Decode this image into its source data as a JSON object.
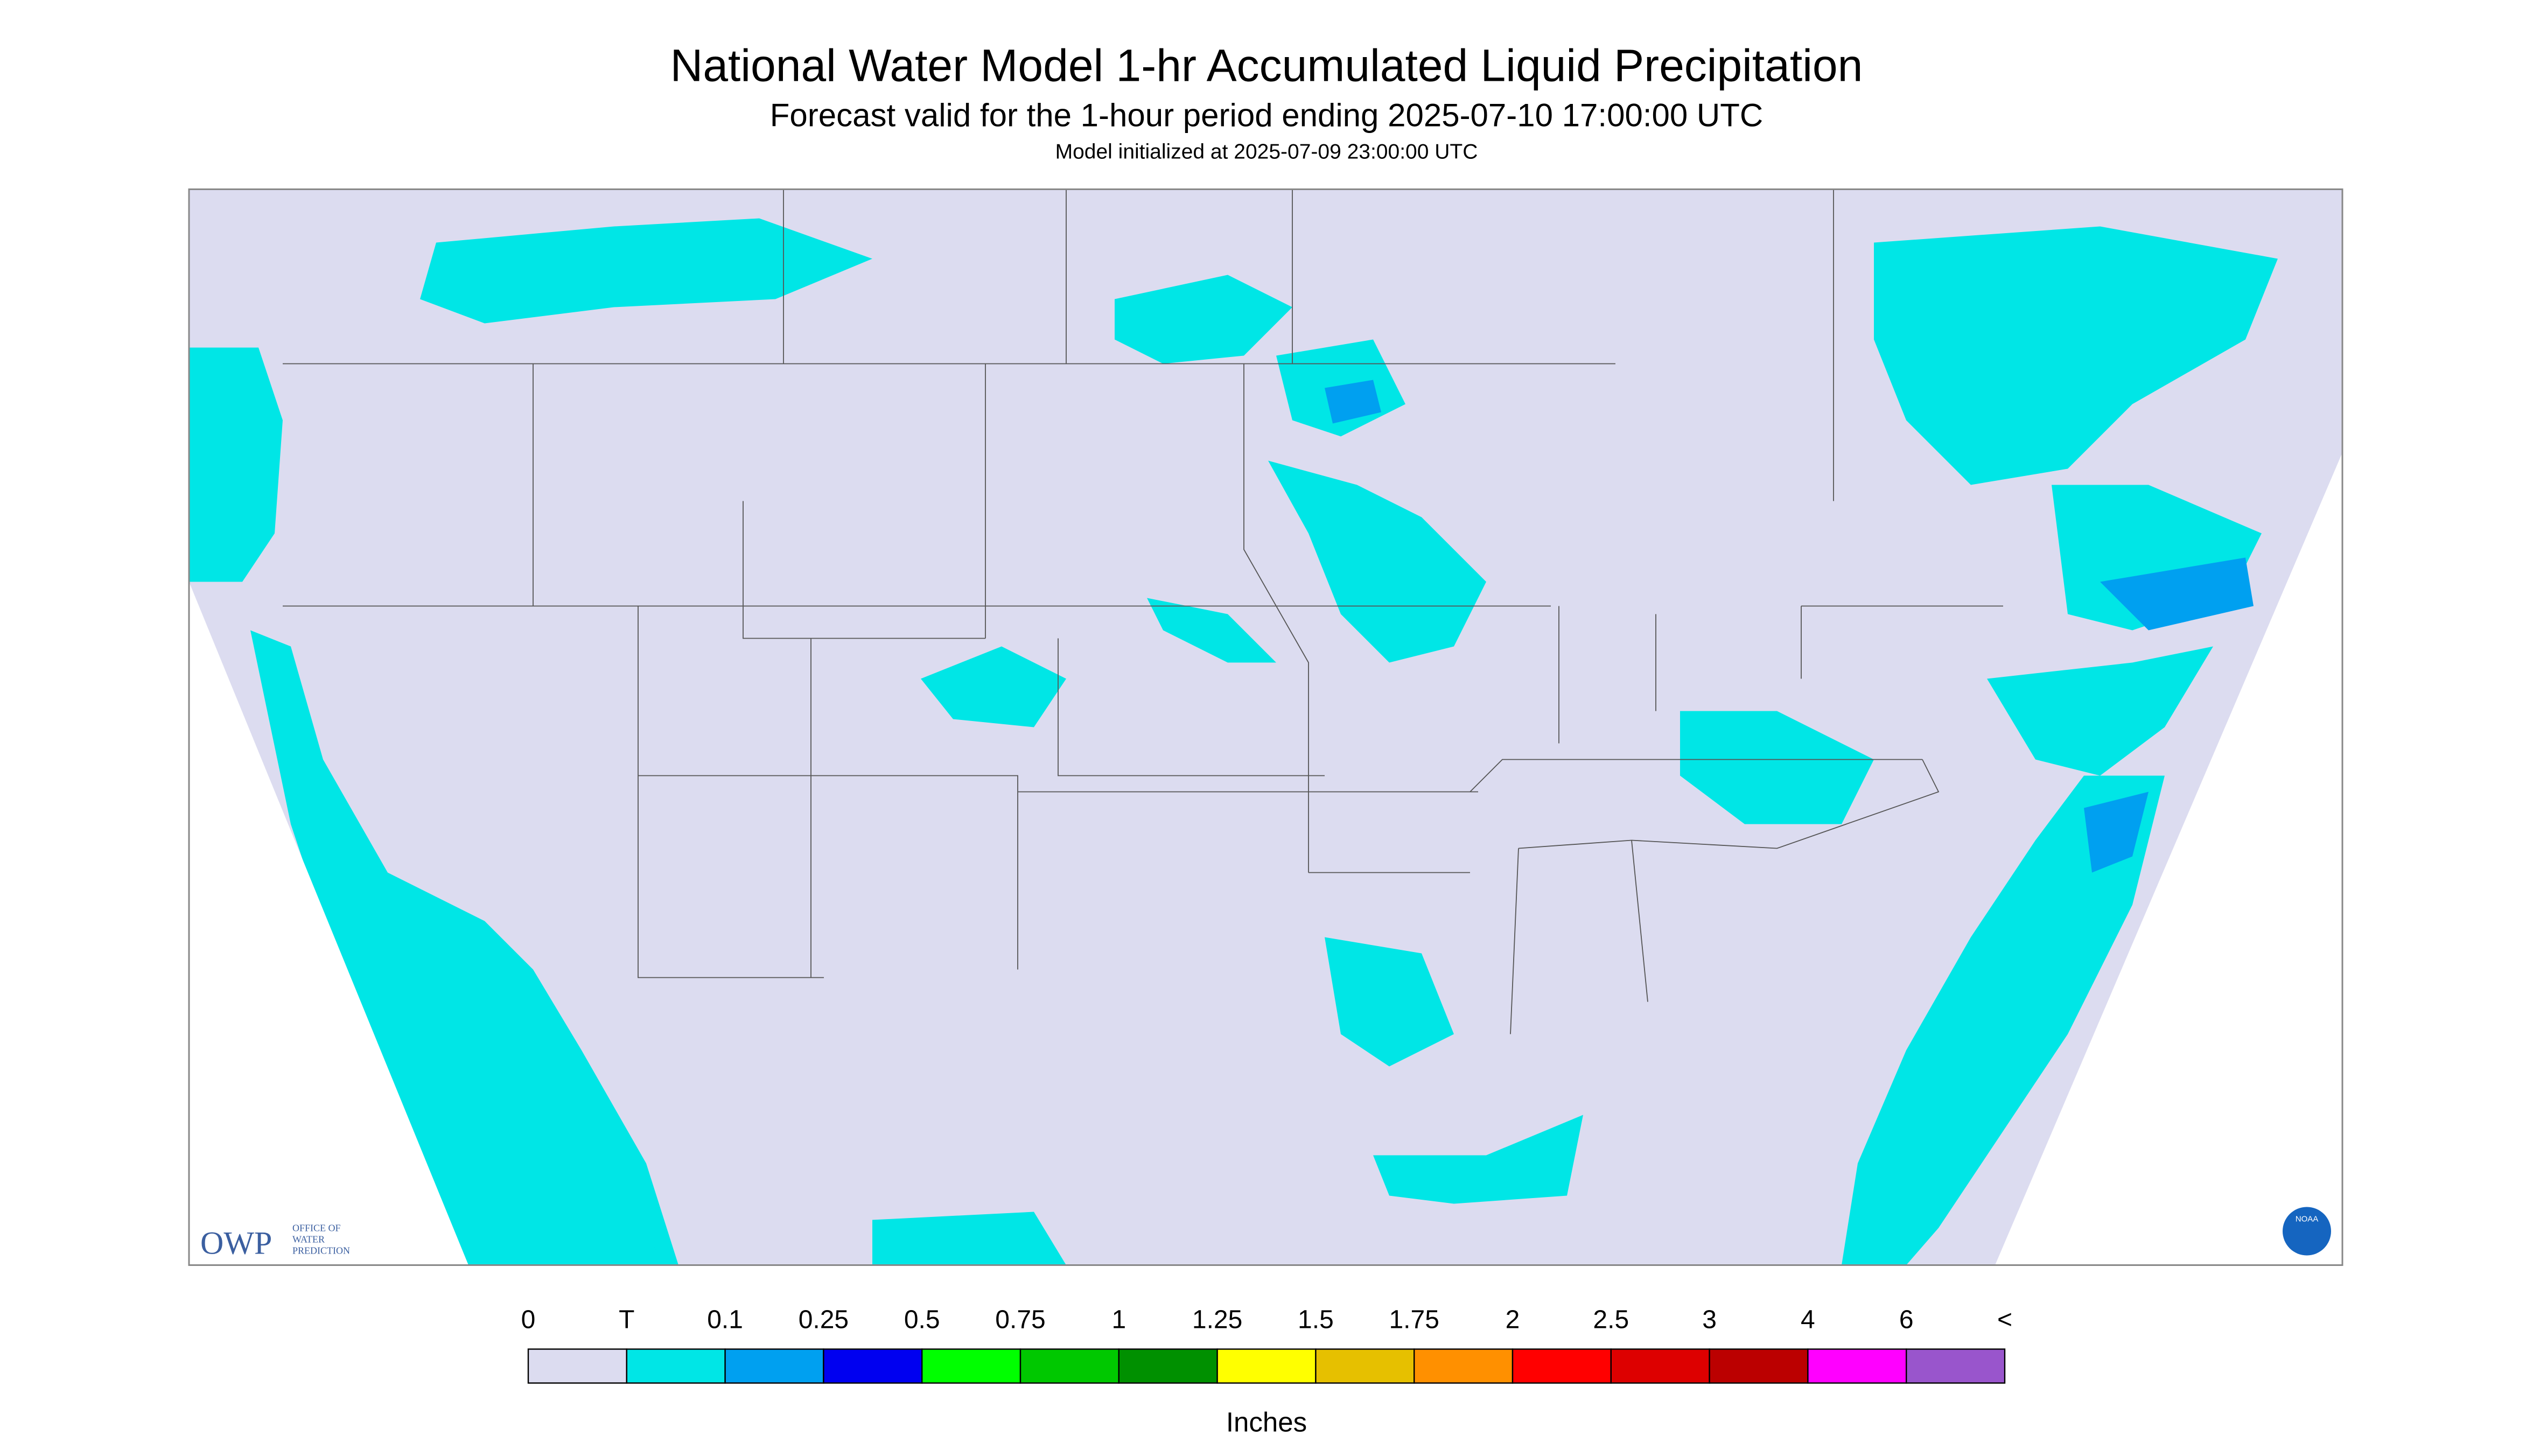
{
  "header": {
    "title": "National Water Model 1-hr Accumulated Liquid Precipitation",
    "subtitle": "Forecast valid for the 1-hour period ending 2025-07-10 17:00:00 UTC",
    "note": "Model initialized at 2025-07-09 23:00:00 UTC"
  },
  "logos": {
    "owp": "OWP",
    "owp_text": [
      "OFFICE OF",
      "WATER",
      "PREDICTION"
    ],
    "noaa": "NOAA"
  },
  "legend": {
    "labels": [
      "0",
      "T",
      "0.1",
      "0.25",
      "0.5",
      "0.75",
      "1",
      "1.25",
      "1.5",
      "1.75",
      "2",
      "2.5",
      "3",
      "4",
      "6",
      "<"
    ],
    "colors": [
      "#dcdcf0",
      "#00e6e6",
      "#00a0f0",
      "#0000f0",
      "#00ff00",
      "#00c800",
      "#009000",
      "#ffff00",
      "#e6c000",
      "#ff9000",
      "#ff0000",
      "#dd0000",
      "#bb0000",
      "#ff00ff",
      "#9955cc"
    ],
    "units": "Inches"
  }
}
